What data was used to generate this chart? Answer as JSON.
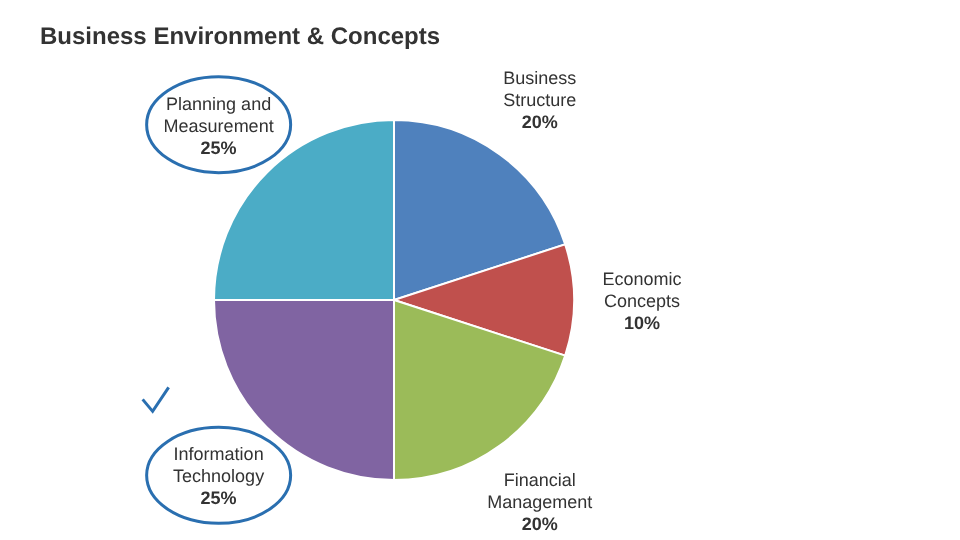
{
  "chart_data": {
    "type": "pie",
    "title": "Business Environment & Concepts",
    "categories": [
      "Business Structure",
      "Economic Concepts",
      "Financial Management",
      "Information Technology",
      "Planning and Measurement"
    ],
    "values": [
      20,
      10,
      20,
      25,
      25
    ],
    "colors": [
      "#4f81bd",
      "#c0504d",
      "#9bbb59",
      "#8064a2",
      "#4bacc6"
    ],
    "value_labels": [
      "20%",
      "10%",
      "20%",
      "25%",
      "25%"
    ]
  }
}
